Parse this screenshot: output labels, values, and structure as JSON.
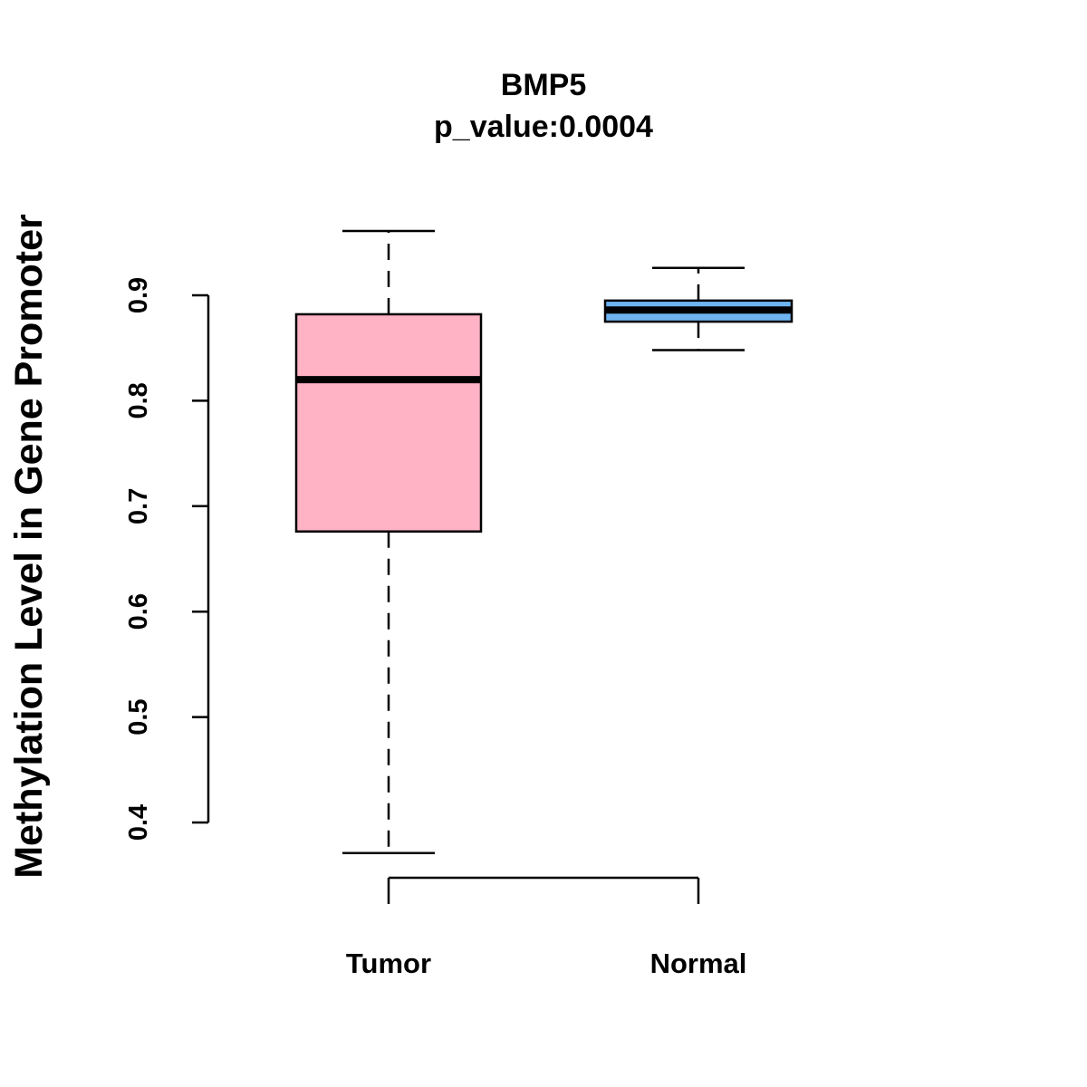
{
  "chart_data": {
    "type": "boxplot",
    "title": "BMP5",
    "subtitle": "p_value:0.0004",
    "xlabel": "",
    "ylabel": "Methylation Level in Gene Promoter",
    "ylim": [
      0.4,
      0.9
    ],
    "yticks": [
      "0.4",
      "0.5",
      "0.6",
      "0.7",
      "0.8",
      "0.9"
    ],
    "yticks_values": [
      0.4,
      0.5,
      0.6,
      0.7,
      0.8,
      0.9
    ],
    "grid": false,
    "categories": [
      "Tumor",
      "Normal"
    ],
    "series": [
      {
        "name": "Tumor",
        "color": "#FFB3C5",
        "whisker_low": 0.371,
        "q1": 0.676,
        "median": 0.82,
        "q3": 0.882,
        "whisker_high": 0.961
      },
      {
        "name": "Normal",
        "color": "#6EB4F0",
        "whisker_low": 0.848,
        "q1": 0.875,
        "median": 0.886,
        "q3": 0.895,
        "whisker_high": 0.926
      }
    ]
  }
}
